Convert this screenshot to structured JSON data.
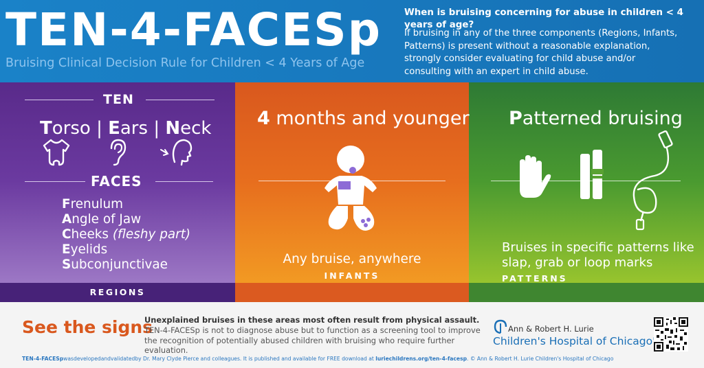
{
  "header": {
    "title": "TEN-4-FACESp",
    "subtitle": "Bruising Clinical Decision Rule for Children < 4 Years of Age",
    "question": "When is bruising concerning for abuse in children < 4 years of age?",
    "answer": "If bruising in any of the three components (Regions, Infants, Patterns) is present without a reasonable explanation, strongly consider evaluating for child abuse and/or consulting with an expert in child abuse."
  },
  "regions": {
    "ten_label": "TEN",
    "ten_items": [
      {
        "initial": "T",
        "rest": "orso"
      },
      {
        "initial": "E",
        "rest": "ars"
      },
      {
        "initial": "N",
        "rest": "eck"
      }
    ],
    "separator": "|",
    "faces_label": "FACES",
    "faces_items": [
      {
        "initial": "F",
        "rest": "renulum",
        "note": ""
      },
      {
        "initial": "A",
        "rest": "ngle of Jaw",
        "note": ""
      },
      {
        "initial": "C",
        "rest": "heeks ",
        "note": "(fleshy part)"
      },
      {
        "initial": "E",
        "rest": "yelids",
        "note": ""
      },
      {
        "initial": "S",
        "rest": "ubconjunctivae",
        "note": ""
      }
    ],
    "bar_label": "REGIONS",
    "icons": [
      "onesie-icon",
      "ear-icon",
      "neck-icon"
    ]
  },
  "infants": {
    "heading_bold": "4",
    "heading_rest": " months and younger",
    "caption": "Any bruise, anywhere",
    "bar_label": "INFANTS",
    "icon": "infant-icon"
  },
  "patterns": {
    "heading_bold": "P",
    "heading_rest": "atterned bruising",
    "caption": "Bruises in specific patterns like slap, grab or loop marks",
    "bar_label": "PATTERNS",
    "icons": [
      "hand-icon",
      "belt-icon",
      "cord-icon"
    ]
  },
  "footer": {
    "see_signs": "See the signs",
    "bold_line": "Unexplained bruises in these areas most often result from physical assault.",
    "description": "TEN-4-FACESp is not to diagnose abuse but to function as a screening tool to improve the recognition of potentially abused children with bruising who require further evaluation.",
    "credits_bold": "TEN-4-FACESp",
    "credits_text": "wasdevelopedandvalidatedby Dr. Mary Clyde Pierce and colleagues. It is published and available for FREE download at ",
    "credits_link": "luriechildrens.org/ten-4-facesp",
    "credits_end": ".   © Ann & Robert H. Lurie Children's Hospital of Chicago",
    "logo_line1": "Ann & Robert H. Lurie",
    "logo_line2": "Children's Hospital of Chicago",
    "logo_mark": "®",
    "qr_icon": "qr-code-icon"
  },
  "colors": {
    "blue": "#1a82c8",
    "purple": "#592a8a",
    "orange": "#e76e1e",
    "green": "#4a9a30",
    "bruise": "#8d6bd6"
  }
}
